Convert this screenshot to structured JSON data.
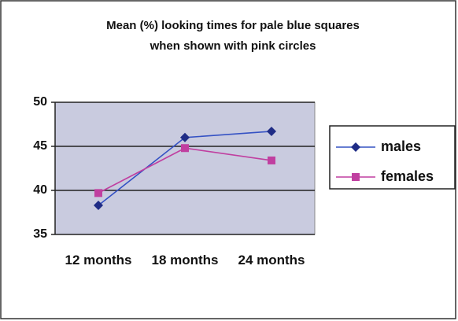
{
  "chart_data": {
    "type": "line",
    "title": [
      "Mean (%) looking times for pale blue squares",
      "when shown with pink circles"
    ],
    "categories": [
      "12 months",
      "18 months",
      "24 months"
    ],
    "series": [
      {
        "name": "males",
        "color": "#1f2c86",
        "values": [
          38.3,
          46,
          46.7
        ]
      },
      {
        "name": "females",
        "color": "#c03fa0",
        "values": [
          39.7,
          44.8,
          43.4
        ]
      }
    ],
    "ylim": [
      35,
      50
    ],
    "yticks": [
      35,
      40,
      45,
      50
    ],
    "grid": true,
    "legend": "right"
  }
}
